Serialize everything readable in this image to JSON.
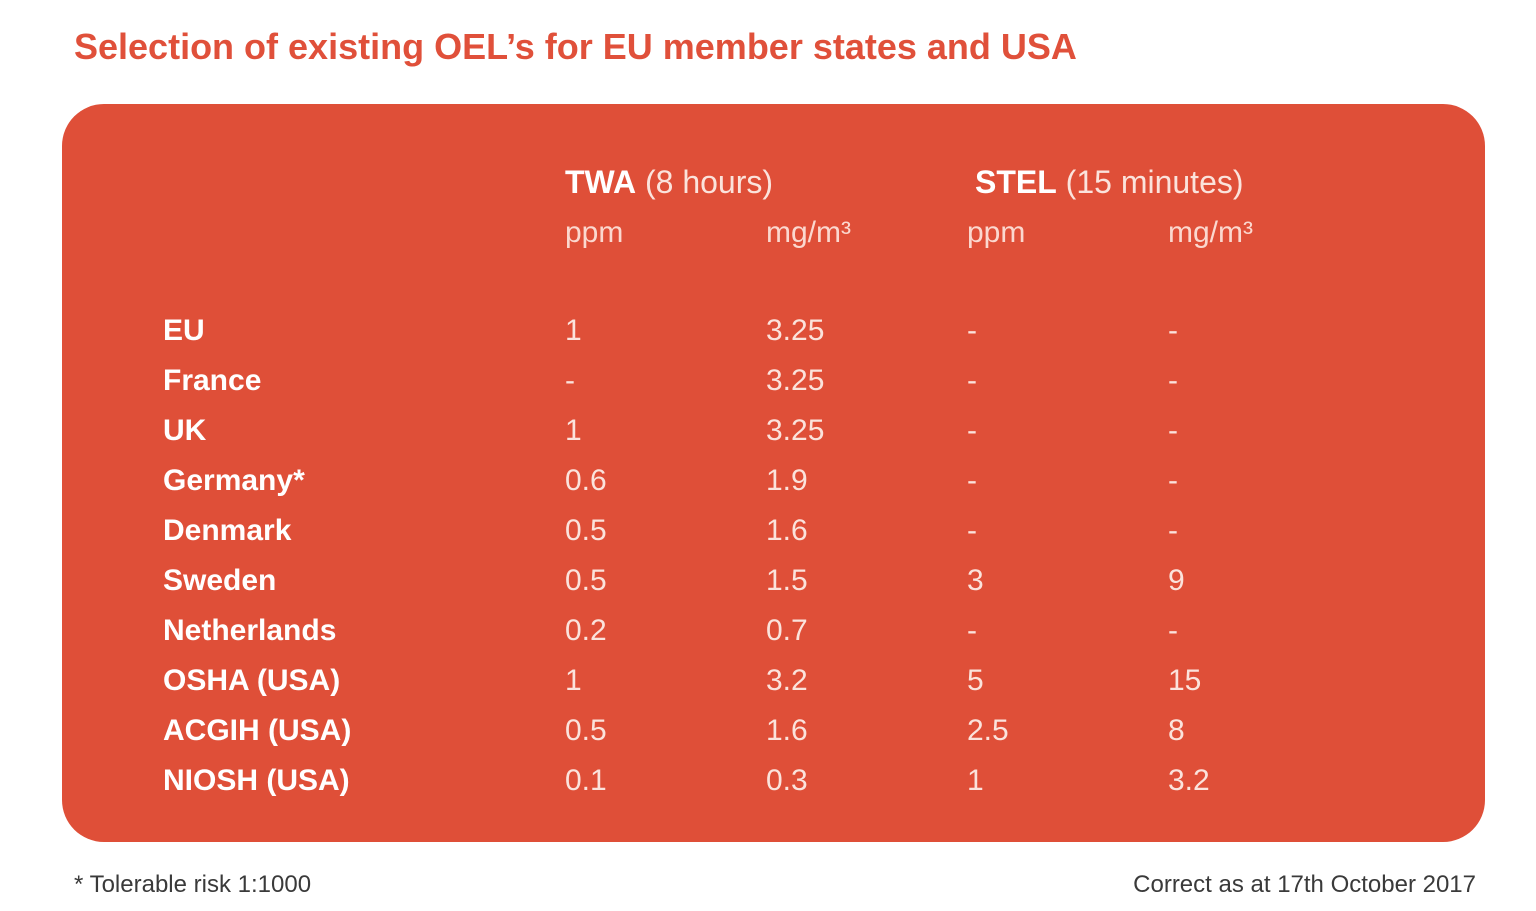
{
  "title": "Selection of existing OEL’s for EU member states and USA",
  "header": {
    "twa_label": "TWA",
    "twa_period": "(8 hours)",
    "stel_label": "STEL",
    "stel_period": "(15 minutes)",
    "units": [
      "ppm",
      "mg/m³",
      "ppm",
      "mg/m³"
    ]
  },
  "rows": [
    {
      "country": "EU",
      "twa_ppm": "1",
      "twa_mg": "3.25",
      "stel_ppm": "-",
      "stel_mg": "-"
    },
    {
      "country": "France",
      "twa_ppm": "-",
      "twa_mg": "3.25",
      "stel_ppm": "-",
      "stel_mg": "-"
    },
    {
      "country": "UK",
      "twa_ppm": "1",
      "twa_mg": "3.25",
      "stel_ppm": "-",
      "stel_mg": "-"
    },
    {
      "country": "Germany*",
      "twa_ppm": "0.6",
      "twa_mg": "1.9",
      "stel_ppm": "-",
      "stel_mg": "-"
    },
    {
      "country": "Denmark",
      "twa_ppm": "0.5",
      "twa_mg": "1.6",
      "stel_ppm": "-",
      "stel_mg": "-"
    },
    {
      "country": "Sweden",
      "twa_ppm": "0.5",
      "twa_mg": "1.5",
      "stel_ppm": "3",
      "stel_mg": "9"
    },
    {
      "country": "Netherlands",
      "twa_ppm": "0.2",
      "twa_mg": "0.7",
      "stel_ppm": "-",
      "stel_mg": "-"
    },
    {
      "country": "OSHA (USA)",
      "twa_ppm": "1",
      "twa_mg": "3.2",
      "stel_ppm": "5",
      "stel_mg": "15"
    },
    {
      "country": "ACGIH (USA)",
      "twa_ppm": "0.5",
      "twa_mg": "1.6",
      "stel_ppm": "2.5",
      "stel_mg": "8"
    },
    {
      "country": "NIOSH (USA)",
      "twa_ppm": "0.1",
      "twa_mg": "0.3",
      "stel_ppm": "1",
      "stel_mg": "3.2"
    }
  ],
  "footer": {
    "note": "* Tolerable risk 1:1000",
    "date": "Correct as at 17th October 2017"
  }
}
